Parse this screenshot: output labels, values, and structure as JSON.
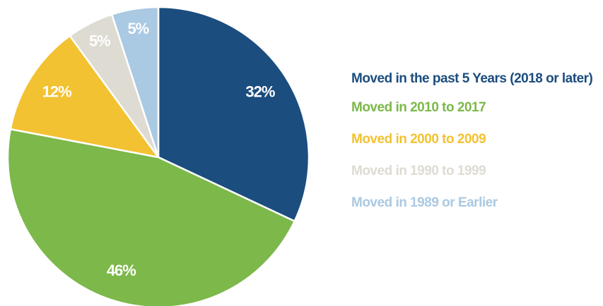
{
  "chart_data": {
    "type": "pie",
    "categories": [
      "Moved in the past 5 Years (2018 or later)",
      "Moved in 2010 to 2017",
      "Moved in 2000 to 2009",
      "Moved in 1990 to 1999",
      "Moved in 1989 or Earlier"
    ],
    "values": [
      32,
      46,
      12,
      5,
      5
    ],
    "value_labels": [
      "32%",
      "46%",
      "12%",
      "5%",
      "5%"
    ],
    "colors": [
      "#1b4d7e",
      "#7cb84a",
      "#f3c232",
      "#dedbd2",
      "#aac9e2"
    ],
    "legend": "right"
  }
}
